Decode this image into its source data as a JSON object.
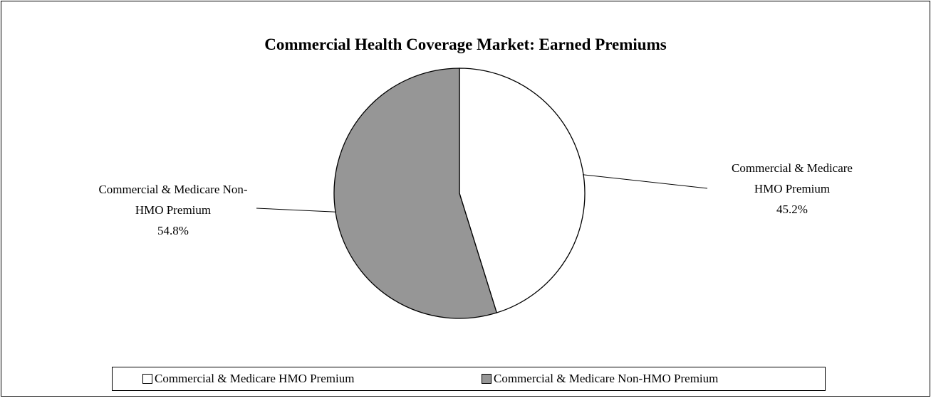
{
  "chart_data": {
    "type": "pie",
    "title": "Commercial Health Coverage Market: Earned Premiums",
    "categories": [
      "Commercial & Medicare HMO Premium",
      "Commercial & Medicare Non-HMO Premium"
    ],
    "values": [
      45.2,
      54.8
    ],
    "value_labels": [
      "45.2%",
      "54.8%"
    ],
    "colors": [
      "#ffffff",
      "#969696"
    ],
    "legend": "bottom"
  }
}
